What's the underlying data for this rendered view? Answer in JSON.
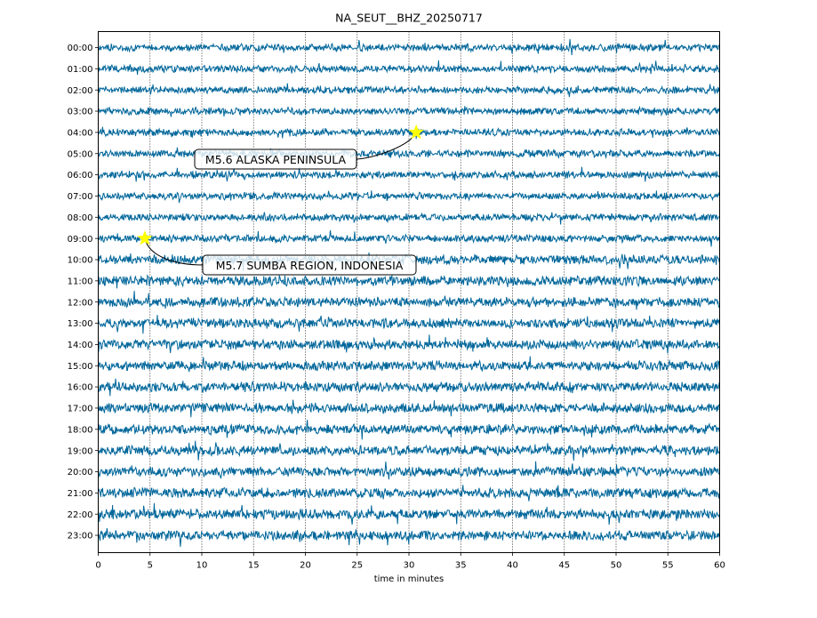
{
  "chart_data": {
    "type": "line",
    "title": "NA_SEUT__BHZ_20250717",
    "xlabel": "time in minutes",
    "ylabel": "",
    "xlim": [
      0,
      60
    ],
    "x_ticks": [
      0,
      5,
      10,
      15,
      20,
      25,
      30,
      35,
      40,
      45,
      50,
      55,
      60
    ],
    "x_tick_labels": [
      "0",
      "5",
      "10",
      "15",
      "20",
      "25",
      "30",
      "35",
      "40",
      "45",
      "50",
      "55",
      "60"
    ],
    "y_tick_labels": [
      "00:00",
      "01:00",
      "02:00",
      "03:00",
      "04:00",
      "05:00",
      "06:00",
      "07:00",
      "08:00",
      "09:00",
      "10:00",
      "11:00",
      "12:00",
      "13:00",
      "14:00",
      "15:00",
      "16:00",
      "17:00",
      "18:00",
      "19:00",
      "20:00",
      "21:00",
      "22:00",
      "23:00"
    ],
    "grid": "vertical dotted at x ticks",
    "trace_color": "#00669a",
    "events": [
      {
        "label": "M5.6 ALASKA PENINSULA",
        "hour_row": "04:00",
        "minute": 30.7,
        "marker": "star",
        "marker_color": "#ffff00"
      },
      {
        "label": "M5.7 SUMBA REGION, INDONESIA",
        "hour_row": "09:00",
        "minute": 4.5,
        "marker": "star",
        "marker_color": "#ffff00"
      }
    ]
  }
}
